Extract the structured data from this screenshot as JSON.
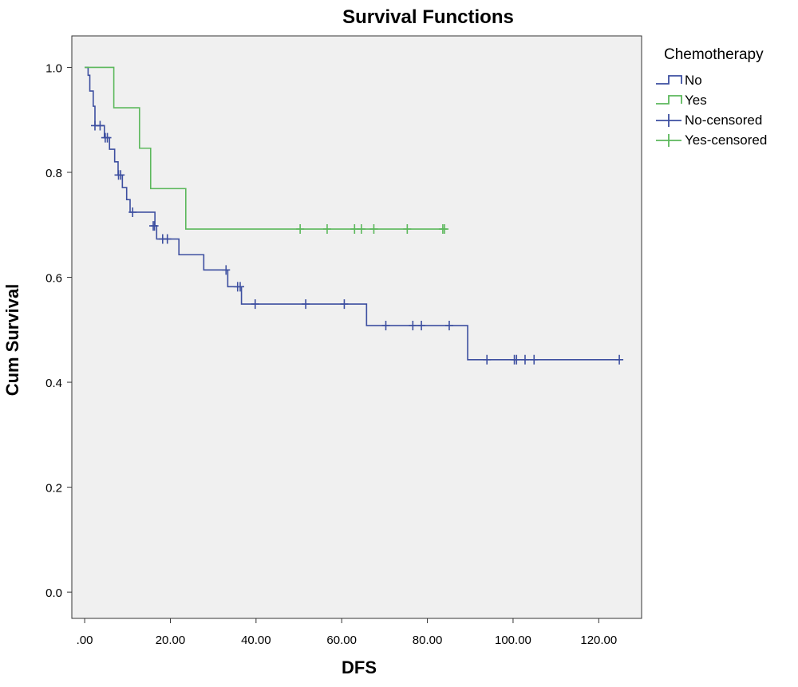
{
  "chart_data": {
    "type": "line",
    "subtype": "kaplan-meier step",
    "title": "Survival Functions",
    "xlabel": "DFS",
    "ylabel": "Cum Survival",
    "xlim": [
      -3,
      130
    ],
    "ylim": [
      -0.05,
      1.06
    ],
    "x_ticks": [
      ".00",
      "20.00",
      "40.00",
      "60.00",
      "80.00",
      "100.00",
      "120.00"
    ],
    "x_tick_values": [
      0,
      20,
      40,
      60,
      80,
      100,
      120
    ],
    "y_ticks": [
      "0.0",
      "0.2",
      "0.4",
      "0.6",
      "0.8",
      "1.0"
    ],
    "y_tick_values": [
      0,
      0.2,
      0.4,
      0.6,
      0.8,
      1.0
    ],
    "grid": false,
    "plot_background": "#f0f0f0",
    "legend": {
      "title": "Chemotherapy",
      "position": "right"
    },
    "series": [
      {
        "name": "No",
        "color": "#3d4fa0",
        "steps": [
          [
            0,
            1.0
          ],
          [
            0.8,
            0.985
          ],
          [
            1.2,
            0.955
          ],
          [
            2.0,
            0.926
          ],
          [
            2.4,
            0.889
          ],
          [
            4.6,
            0.866
          ],
          [
            5.8,
            0.844
          ],
          [
            7.0,
            0.82
          ],
          [
            7.8,
            0.795
          ],
          [
            8.8,
            0.771
          ],
          [
            9.8,
            0.748
          ],
          [
            10.6,
            0.724
          ],
          [
            16.4,
            0.698
          ],
          [
            16.8,
            0.673
          ],
          [
            22.0,
            0.643
          ],
          [
            27.8,
            0.614
          ],
          [
            33.4,
            0.582
          ],
          [
            36.6,
            0.549
          ],
          [
            65.8,
            0.508
          ],
          [
            89.4,
            0.443
          ],
          [
            125.0,
            0.443
          ]
        ],
        "censored": [
          [
            2.4,
            0.889
          ],
          [
            3.6,
            0.889
          ],
          [
            4.8,
            0.866
          ],
          [
            5.3,
            0.866
          ],
          [
            7.9,
            0.795
          ],
          [
            8.4,
            0.795
          ],
          [
            11.2,
            0.724
          ],
          [
            16.0,
            0.698
          ],
          [
            16.3,
            0.698
          ],
          [
            18.2,
            0.673
          ],
          [
            19.3,
            0.673
          ],
          [
            33.0,
            0.614
          ],
          [
            35.7,
            0.582
          ],
          [
            36.3,
            0.582
          ],
          [
            39.8,
            0.549
          ],
          [
            51.6,
            0.549
          ],
          [
            60.6,
            0.549
          ],
          [
            70.3,
            0.508
          ],
          [
            76.6,
            0.508
          ],
          [
            78.6,
            0.508
          ],
          [
            85.1,
            0.508
          ],
          [
            93.9,
            0.443
          ],
          [
            100.3,
            0.443
          ],
          [
            100.8,
            0.443
          ],
          [
            102.8,
            0.443
          ],
          [
            104.9,
            0.443
          ],
          [
            124.8,
            0.443
          ]
        ]
      },
      {
        "name": "Yes",
        "color": "#5cb85c",
        "steps": [
          [
            0,
            1.0
          ],
          [
            6.8,
            0.923
          ],
          [
            12.8,
            0.846
          ],
          [
            15.4,
            0.769
          ],
          [
            23.6,
            0.692
          ],
          [
            84.0,
            0.692
          ]
        ],
        "censored": [
          [
            50.3,
            0.692
          ],
          [
            56.6,
            0.692
          ],
          [
            63.0,
            0.692
          ],
          [
            64.6,
            0.692
          ],
          [
            67.5,
            0.692
          ],
          [
            75.3,
            0.692
          ],
          [
            83.6,
            0.692
          ],
          [
            84.0,
            0.692
          ]
        ]
      }
    ],
    "legend_entries": [
      {
        "label": "No",
        "kind": "step",
        "series": 0
      },
      {
        "label": "Yes",
        "kind": "step",
        "series": 1
      },
      {
        "label": "No-censored",
        "kind": "censor",
        "series": 0
      },
      {
        "label": "Yes-censored",
        "kind": "censor",
        "series": 1
      }
    ]
  }
}
